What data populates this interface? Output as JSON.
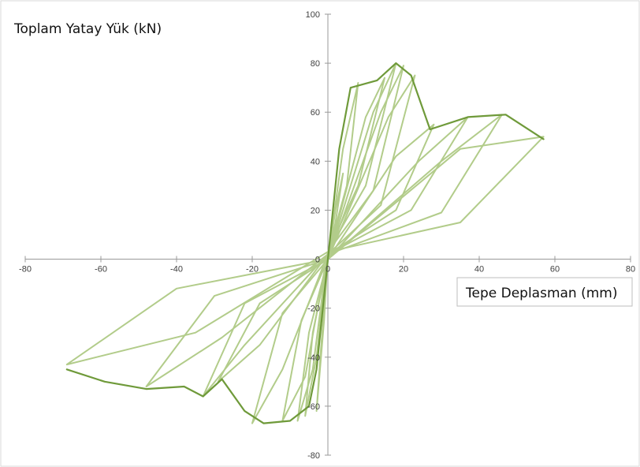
{
  "chart_data": {
    "type": "line",
    "title": "",
    "ylabel": "Toplam Yatay Yük (kN)",
    "xlabel": "Tepe Deplasman (mm)",
    "xlim": [
      -80,
      80
    ],
    "ylim": [
      -80,
      100
    ],
    "x_ticks": [
      -80,
      -60,
      -40,
      -20,
      0,
      20,
      40,
      60,
      80
    ],
    "y_ticks": [
      -80,
      -60,
      -40,
      -20,
      0,
      20,
      40,
      60,
      80,
      100
    ],
    "grid": false,
    "legend": "none",
    "colors": {
      "cycles": "#b2cc8a",
      "envelope": "#6f9a3a"
    },
    "series": [
      {
        "x": [
          0,
          2,
          4,
          2,
          0,
          -1,
          -2,
          0
        ],
        "y": [
          0,
          20,
          35,
          15,
          0,
          -12,
          -24,
          0
        ]
      },
      {
        "x": [
          0,
          4,
          8,
          5,
          0,
          -1,
          -3,
          -2,
          0
        ],
        "y": [
          0,
          45,
          72,
          30,
          2,
          -25,
          -62,
          -40,
          0
        ]
      },
      {
        "x": [
          0,
          10,
          15,
          8,
          0,
          -3,
          -6,
          -4,
          0
        ],
        "y": [
          0,
          58,
          74,
          30,
          3,
          -40,
          -64,
          -30,
          0
        ]
      },
      {
        "x": [
          0,
          12,
          18,
          10,
          0,
          -4,
          -8,
          -5,
          0
        ],
        "y": [
          0,
          60,
          80,
          30,
          3,
          -45,
          -66,
          -30,
          0
        ]
      },
      {
        "x": [
          0,
          14,
          20,
          12,
          0,
          -6,
          -12,
          -7,
          0
        ],
        "y": [
          0,
          60,
          79,
          28,
          3,
          -48,
          -66,
          -25,
          0
        ]
      },
      {
        "x": [
          0,
          16,
          23,
          14,
          0,
          -12,
          -20,
          -12,
          0
        ],
        "y": [
          0,
          58,
          75,
          22,
          2,
          -45,
          -67,
          -22,
          0
        ]
      },
      {
        "x": [
          0,
          18,
          28,
          18,
          0,
          -18,
          -29,
          -18,
          0
        ],
        "y": [
          0,
          42,
          55,
          20,
          2,
          -35,
          -50,
          -18,
          0
        ]
      },
      {
        "x": [
          0,
          24,
          37,
          22,
          0,
          -22,
          -33,
          -22,
          0
        ],
        "y": [
          0,
          40,
          58,
          20,
          2,
          -35,
          -56,
          -18,
          0
        ]
      },
      {
        "x": [
          0,
          30,
          46,
          30,
          0,
          -28,
          -48,
          -30,
          0
        ],
        "y": [
          0,
          40,
          59,
          19,
          2,
          -32,
          -52,
          -15,
          0
        ]
      },
      {
        "x": [
          0,
          35,
          57,
          35,
          0,
          -35,
          -69,
          -40,
          0
        ],
        "y": [
          0,
          45,
          50,
          15,
          3,
          -30,
          -43,
          -12,
          0
        ]
      }
    ],
    "envelope": {
      "x": [
        -69,
        -59,
        -48,
        -38,
        -33,
        -28,
        -22,
        -17,
        -10,
        -5,
        -3,
        0,
        3,
        6,
        13,
        18,
        22,
        27,
        37,
        47,
        57
      ],
      "y": [
        -45,
        -50,
        -53,
        -52,
        -56,
        -49,
        -62,
        -67,
        -66,
        -60,
        -45,
        0,
        45,
        70,
        73,
        80,
        75,
        53,
        58,
        59,
        49
      ]
    }
  }
}
